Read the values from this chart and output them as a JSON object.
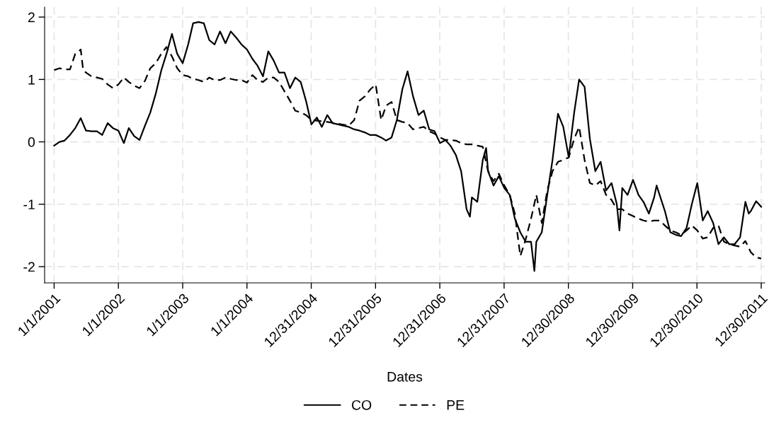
{
  "chart_data": {
    "type": "line",
    "xlabel": "Dates",
    "xlim": [
      "2000-11-08",
      "2012-01-19"
    ],
    "ylim": [
      -2.26,
      2.16
    ],
    "yticks": [
      -2,
      -1,
      0,
      1,
      2
    ],
    "xticks": [
      {
        "value": "2001-01-01",
        "label": "1/1/2001"
      },
      {
        "value": "2002-01-01",
        "label": "1/1/2002"
      },
      {
        "value": "2003-01-01",
        "label": "1/1/2003"
      },
      {
        "value": "2004-01-01",
        "label": "1/1/2004"
      },
      {
        "value": "2004-12-31",
        "label": "12/31/2004"
      },
      {
        "value": "2005-12-31",
        "label": "12/31/2005"
      },
      {
        "value": "2006-12-31",
        "label": "12/31/2006"
      },
      {
        "value": "2007-12-31",
        "label": "12/31/2007"
      },
      {
        "value": "2008-12-30",
        "label": "12/30/2008"
      },
      {
        "value": "2009-12-30",
        "label": "12/30/2009"
      },
      {
        "value": "2010-12-30",
        "label": "12/30/2010"
      },
      {
        "value": "2011-12-30",
        "label": "12/30/2011"
      }
    ],
    "grid": true,
    "legend": "bottom",
    "marker": "none",
    "series": [
      {
        "name": "CO",
        "color": "#000000",
        "line_style": "solid",
        "x": [
          "2001-01",
          "2001-02",
          "2001-03",
          "2001-04",
          "2001-05",
          "2001-06",
          "2001-07",
          "2001-08",
          "2001-09",
          "2001-10",
          "2001-11",
          "2001-12",
          "2002-01",
          "2002-02",
          "2002-03",
          "2002-04",
          "2002-05",
          "2002-06",
          "2002-07",
          "2002-08",
          "2002-09",
          "2002-10",
          "2002-11",
          "2002-12",
          "2003-01",
          "2003-02",
          "2003-03",
          "2003-04",
          "2003-05",
          "2003-06",
          "2003-07",
          "2003-08",
          "2003-09",
          "2003-10",
          "2003-11",
          "2003-12",
          "2004-01",
          "2004-02",
          "2004-03",
          "2004-04",
          "2004-05",
          "2004-06",
          "2004-07",
          "2004-08",
          "2004-09",
          "2004-10",
          "2004-11",
          "2004-12",
          "2005-01",
          "2005-02",
          "2005-03",
          "2005-04",
          "2005-05",
          "2005-06",
          "2005-07",
          "2005-08",
          "2005-09",
          "2005-10",
          "2005-11",
          "2005-12",
          "2006-01",
          "2006-02",
          "2006-03",
          "2006-04",
          "2006-05",
          "2006-06",
          "2006-07",
          "2006-08",
          "2006-09",
          "2006-10",
          "2006-11",
          "2006-12",
          "2007-01",
          "2007-02",
          "2007-03",
          "2007-04",
          "2007-05",
          "2007-06",
          "2007-06-20",
          "2007-07",
          "2007-08",
          "2007-09",
          "2007-09-20",
          "2007-10",
          "2007-11",
          "2007-12",
          "2008-01",
          "2008-02",
          "2008-03",
          "2008-04",
          "2008-05",
          "2008-06",
          "2008-06-20",
          "2008-07",
          "2008-08",
          "2008-09",
          "2008-10",
          "2008-11",
          "2008-12",
          "2009-01",
          "2009-02",
          "2009-03",
          "2009-04",
          "2009-05",
          "2009-06",
          "2009-07",
          "2009-08",
          "2009-09",
          "2009-10",
          "2009-10-16",
          "2009-11",
          "2009-12",
          "2010-01",
          "2010-02",
          "2010-03",
          "2010-04",
          "2010-05",
          "2010-05-15",
          "2010-06",
          "2010-07",
          "2010-08",
          "2010-09",
          "2010-10",
          "2010-11",
          "2010-12",
          "2011-01",
          "2011-02",
          "2011-03",
          "2011-04",
          "2011-05",
          "2011-06",
          "2011-07",
          "2011-08",
          "2011-09",
          "2011-10",
          "2011-10-20",
          "2011-11",
          "2011-12",
          "2011-12-30"
        ],
        "values": [
          -0.06,
          0.0,
          0.02,
          0.11,
          0.22,
          0.38,
          0.18,
          0.17,
          0.17,
          0.11,
          0.3,
          0.22,
          0.18,
          -0.02,
          0.22,
          0.09,
          0.03,
          0.26,
          0.47,
          0.77,
          1.14,
          1.41,
          1.73,
          1.41,
          1.26,
          1.56,
          1.9,
          1.92,
          1.9,
          1.63,
          1.56,
          1.77,
          1.58,
          1.77,
          1.67,
          1.56,
          1.48,
          1.33,
          1.22,
          1.05,
          1.45,
          1.3,
          1.11,
          1.11,
          0.86,
          1.03,
          0.96,
          0.66,
          0.28,
          0.39,
          0.24,
          0.43,
          0.3,
          0.28,
          0.26,
          0.24,
          0.2,
          0.18,
          0.15,
          0.11,
          0.11,
          0.07,
          0.02,
          0.07,
          0.35,
          0.84,
          1.13,
          0.73,
          0.43,
          0.5,
          0.2,
          0.17,
          -0.02,
          0.03,
          -0.06,
          -0.21,
          -0.47,
          -1.08,
          -1.2,
          -0.89,
          -0.96,
          -0.29,
          -0.1,
          -0.47,
          -0.7,
          -0.55,
          -0.74,
          -0.85,
          -1.23,
          -1.45,
          -1.6,
          -1.6,
          -2.07,
          -1.6,
          -1.45,
          -0.85,
          -0.29,
          0.45,
          0.24,
          -0.25,
          0.47,
          1.0,
          0.88,
          0.05,
          -0.47,
          -0.32,
          -0.78,
          -0.66,
          -1.0,
          -1.42,
          -0.74,
          -0.85,
          -0.61,
          -0.85,
          -0.96,
          -1.15,
          -0.89,
          -0.7,
          -0.85,
          -1.11,
          -1.45,
          -1.49,
          -1.51,
          -1.38,
          -1.0,
          -0.66,
          -1.26,
          -1.11,
          -1.3,
          -1.64,
          -1.53,
          -1.64,
          -1.64,
          -1.53,
          -0.96,
          -1.15,
          -1.11,
          -0.95,
          -1.04
        ]
      },
      {
        "name": "PE",
        "color": "#000000",
        "line_style": "dashed",
        "x": [
          "2001-01",
          "2001-02",
          "2001-03",
          "2001-04",
          "2001-05",
          "2001-06",
          "2001-06-15",
          "2001-07",
          "2001-08",
          "2001-09",
          "2001-10",
          "2001-11",
          "2001-12",
          "2002-01",
          "2002-02",
          "2002-03",
          "2002-04",
          "2002-05",
          "2002-06",
          "2002-07",
          "2002-08",
          "2002-09",
          "2002-10",
          "2002-11",
          "2002-12",
          "2003-01",
          "2003-02",
          "2003-03",
          "2003-04",
          "2003-05",
          "2003-06",
          "2003-07",
          "2003-08",
          "2003-09",
          "2003-10",
          "2003-11",
          "2003-12",
          "2004-01",
          "2004-02",
          "2004-03",
          "2004-04",
          "2004-05",
          "2004-06",
          "2004-07",
          "2004-08",
          "2004-09",
          "2004-10",
          "2004-11",
          "2004-12",
          "2005-01",
          "2005-04",
          "2005-08",
          "2005-09",
          "2005-10",
          "2005-11",
          "2005-12",
          "2006-01",
          "2006-01-15",
          "2006-02",
          "2006-03",
          "2006-04",
          "2006-05",
          "2006-06",
          "2006-07",
          "2006-08",
          "2006-09",
          "2006-10",
          "2006-11",
          "2006-12",
          "2007-01",
          "2007-02",
          "2007-03",
          "2007-04",
          "2007-05",
          "2007-06",
          "2007-07",
          "2007-08",
          "2007-09",
          "2007-10",
          "2007-11",
          "2007-12",
          "2008-01",
          "2008-02",
          "2008-03",
          "2008-04",
          "2008-05",
          "2008-06",
          "2008-07",
          "2008-08",
          "2008-09",
          "2008-10",
          "2008-11",
          "2008-12",
          "2009-01",
          "2009-02",
          "2009-03",
          "2009-04",
          "2009-05",
          "2009-06",
          "2009-07",
          "2009-08",
          "2009-09",
          "2009-10",
          "2009-11",
          "2009-12",
          "2010-01",
          "2010-02",
          "2010-03",
          "2010-04",
          "2010-05",
          "2010-06",
          "2010-07",
          "2010-08",
          "2010-09",
          "2010-10",
          "2010-11",
          "2010-12",
          "2011-01",
          "2011-02",
          "2011-03",
          "2011-04",
          "2011-05",
          "2011-06",
          "2011-07",
          "2011-08",
          "2011-09",
          "2011-10",
          "2011-11",
          "2011-12",
          "2011-12-30"
        ],
        "values": [
          1.15,
          1.18,
          1.16,
          1.16,
          1.41,
          1.48,
          1.15,
          1.11,
          1.05,
          1.03,
          1.01,
          0.92,
          0.86,
          0.92,
          1.03,
          0.96,
          0.9,
          0.86,
          0.98,
          1.18,
          1.26,
          1.41,
          1.52,
          1.37,
          1.18,
          1.07,
          1.05,
          1.01,
          0.99,
          0.96,
          1.03,
          0.99,
          0.99,
          1.03,
          1.01,
          0.99,
          0.99,
          0.95,
          1.07,
          0.99,
          0.96,
          1.03,
          1.03,
          0.96,
          0.81,
          0.66,
          0.5,
          0.47,
          0.43,
          0.35,
          0.32,
          0.26,
          0.35,
          0.66,
          0.73,
          0.84,
          0.92,
          0.66,
          0.35,
          0.58,
          0.64,
          0.35,
          0.32,
          0.3,
          0.2,
          0.22,
          0.24,
          0.17,
          0.13,
          0.07,
          0.03,
          0.03,
          0.02,
          -0.02,
          -0.04,
          -0.04,
          -0.06,
          -0.08,
          -0.47,
          -0.63,
          -0.51,
          -0.7,
          -0.85,
          -1.15,
          -1.83,
          -1.57,
          -1.23,
          -0.85,
          -1.3,
          -0.78,
          -0.47,
          -0.32,
          -0.29,
          -0.25,
          0.05,
          0.24,
          -0.29,
          -0.66,
          -0.7,
          -0.63,
          -0.85,
          -0.93,
          -1.08,
          -1.08,
          -1.15,
          -1.19,
          -1.23,
          -1.26,
          -1.28,
          -1.26,
          -1.26,
          -1.34,
          -1.42,
          -1.45,
          -1.49,
          -1.42,
          -1.34,
          -1.42,
          -1.55,
          -1.53,
          -1.38,
          -1.34,
          -1.6,
          -1.64,
          -1.66,
          -1.68,
          -1.59,
          -1.77,
          -1.85,
          -1.87
        ]
      }
    ]
  }
}
